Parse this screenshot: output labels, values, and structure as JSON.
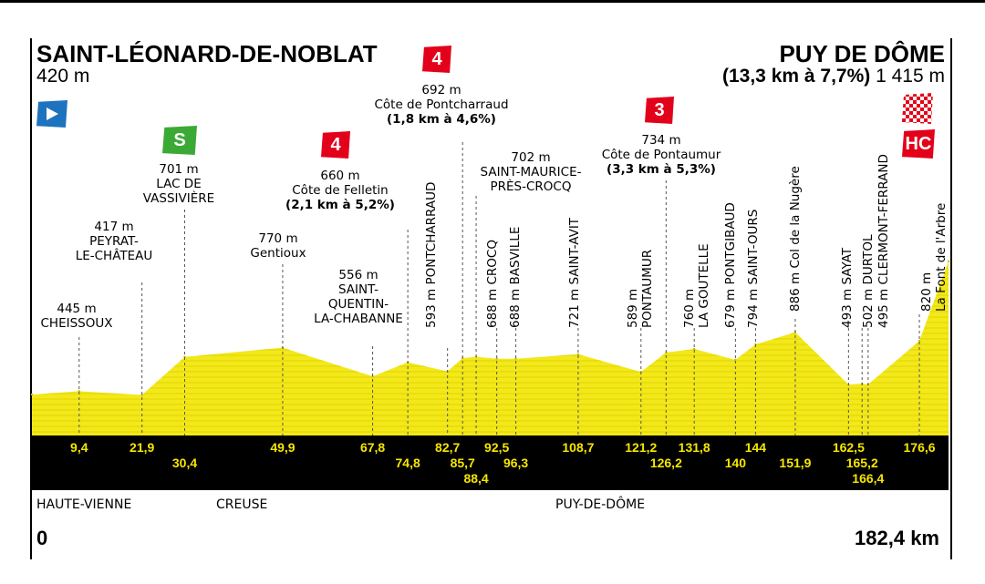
{
  "start": {
    "name": "SAINT-LÉONARD-DE-NOBLAT",
    "altitude": "420 m"
  },
  "finish": {
    "name": "PUY DE DÔME",
    "climb": "(13,3 km à 7,7%)",
    "altitude": "1 415 m"
  },
  "distance_start": "0",
  "distance_total": "182,4 km",
  "regions": [
    "HAUTE-VIENNE",
    "CREUSE",
    "PUY-DE-DÔME"
  ],
  "badges": {
    "start_flag": "start-flag-icon",
    "sprint": "S",
    "cat4_felletin": "4",
    "cat4_pontcharraud": "4",
    "cat3_pontaumur": "3",
    "finish_flag": "checkered-flag-icon",
    "hc": "HC"
  },
  "colors": {
    "profile_fill": "#f2e81a",
    "strip": "#000000",
    "km_text": "#f5e600",
    "climb_red": "#e3001b",
    "sprint_green": "#3aaa35",
    "start_blue": "#1e73be"
  },
  "points": [
    {
      "id": "cheissoux",
      "km": "9,4",
      "alt": "445 m",
      "name": "CHEISSOUX",
      "label_lines": [
        "445 m",
        "CHEISSOUX"
      ]
    },
    {
      "id": "peyrat",
      "km": "21,9",
      "alt": "417 m",
      "name": "PEYRAT-LE-CHÂTEAU",
      "label_lines": [
        "417 m",
        "PEYRAT-",
        "LE-CHÂTEAU"
      ]
    },
    {
      "id": "vassiviere",
      "km": "30,4",
      "alt": "701 m",
      "name": "LAC DE VASSIVIÈRE",
      "label_lines": [
        "701 m",
        "LAC DE",
        "VASSIVIÈRE"
      ]
    },
    {
      "id": "gentioux",
      "km": "49,9",
      "alt": "770 m",
      "name": "Gentioux",
      "label_lines": [
        "770 m",
        "Gentioux"
      ]
    },
    {
      "id": "saintquentin",
      "km": "67,8",
      "alt": "556 m",
      "name": "SAINT-QUENTIN-LA-CHABANNE",
      "label_lines": [
        "556 m",
        "SAINT-",
        "QUENTIN-",
        "LA-CHABANNE"
      ]
    },
    {
      "id": "felletin",
      "km": "74,8",
      "alt": "660 m",
      "name": "Côte de Felletin",
      "label_lines": [
        "660 m",
        "Côte de Felletin"
      ],
      "climb": "(2,1 km à 5,2%)"
    },
    {
      "id": "pontcharraud",
      "km": "82,7",
      "alt": "593 m",
      "name": "PONTCHARRAUD",
      "vertical": "593 m PONTCHARRAUD"
    },
    {
      "id": "cotepontcharraud",
      "km": "85,7",
      "alt": "692 m",
      "name": "Côte de Pontcharraud",
      "label_lines": [
        "692 m",
        "Côte de Pontcharraud"
      ],
      "climb": "(1,8 km à 4,6%)"
    },
    {
      "id": "smpc",
      "km": "88,4",
      "alt": "702 m",
      "name": "SAINT-MAURICE-PRÈS-CROCQ",
      "label_lines": [
        "702 m",
        "SAINT-MAURICE-",
        "PRÈS-CROCQ"
      ]
    },
    {
      "id": "crocq",
      "km": "92,5",
      "alt": "688 m",
      "name": "CROCQ",
      "vertical": "688 m CROCQ"
    },
    {
      "id": "basville",
      "km": "96,3",
      "alt": "688 m",
      "name": "BASVILLE",
      "vertical": "688 m BASVILLE"
    },
    {
      "id": "saintavit",
      "km": "108,7",
      "alt": "721 m",
      "name": "SAINT-AVIT",
      "vertical": "721 m SAINT-AVIT"
    },
    {
      "id": "pontaumur",
      "km": "121,2",
      "alt": "589 m",
      "name": "PONTAUMUR",
      "vertical_lines": [
        "589 m",
        "PONTAUMUR"
      ]
    },
    {
      "id": "cotepontaumur",
      "km": "126,2",
      "alt": "734 m",
      "name": "Côte de Pontaumur",
      "label_lines": [
        "734 m",
        "Côte de Pontaumur"
      ],
      "climb": "(3,3 km à 5,3%)"
    },
    {
      "id": "lagoutelle",
      "km": "131,8",
      "alt": "760 m",
      "name": "LA GOUTELLE",
      "vertical_lines": [
        "760 m",
        "LA GOUTELLE"
      ]
    },
    {
      "id": "pontgibaud",
      "km": "140",
      "alt": "679 m",
      "name": "PONTGIBAUD",
      "vertical": "679 m PONTGIBAUD"
    },
    {
      "id": "saintours",
      "km": "144",
      "alt": "794 m",
      "name": "SAINT-OURS",
      "vertical": "794 m SAINT-OURS"
    },
    {
      "id": "nugere",
      "km": "151,9",
      "alt": "886 m",
      "name": "Col de la Nugère",
      "vertical": "886 m Col de la Nugère"
    },
    {
      "id": "sayat",
      "km": "162,5",
      "alt": "493 m",
      "name": "SAYAT",
      "vertical": "493 m SAYAT"
    },
    {
      "id": "durtol",
      "km": "165,2",
      "alt": "502 m",
      "name": "DURTOL",
      "vertical": "502 m DURTOL"
    },
    {
      "id": "clermont",
      "km": "166,4",
      "alt": "495 m",
      "name": "CLERMONT-FERRAND",
      "vertical": "495 m CLERMONT-FERRAND"
    },
    {
      "id": "fontarbre",
      "km": "176,6",
      "alt": "820 m",
      "name": "La Font de l'Arbre",
      "vertical_lines": [
        "820 m",
        "La Font de l'Arbre"
      ]
    }
  ],
  "chart_data": {
    "type": "area",
    "title": "",
    "xlabel": "",
    "ylabel": "",
    "xlim": [
      0,
      182.4
    ],
    "x": [
      0,
      9.4,
      21.9,
      30.4,
      49.9,
      67.8,
      74.8,
      82.7,
      85.7,
      88.4,
      92.5,
      96.3,
      108.7,
      121.2,
      126.2,
      131.8,
      140,
      144,
      151.9,
      162.5,
      165.2,
      166.4,
      176.6,
      182.4
    ],
    "y": [
      420,
      445,
      417,
      701,
      770,
      556,
      660,
      593,
      692,
      702,
      688,
      688,
      721,
      589,
      734,
      760,
      679,
      794,
      886,
      493,
      502,
      495,
      820,
      1415
    ],
    "series": [
      {
        "values": [
          420,
          445,
          417,
          701,
          770,
          556,
          660,
          593,
          692,
          702,
          688,
          688,
          721,
          589,
          734,
          760,
          679,
          794,
          886,
          493,
          502,
          495,
          820,
          1415
        ]
      }
    ]
  }
}
